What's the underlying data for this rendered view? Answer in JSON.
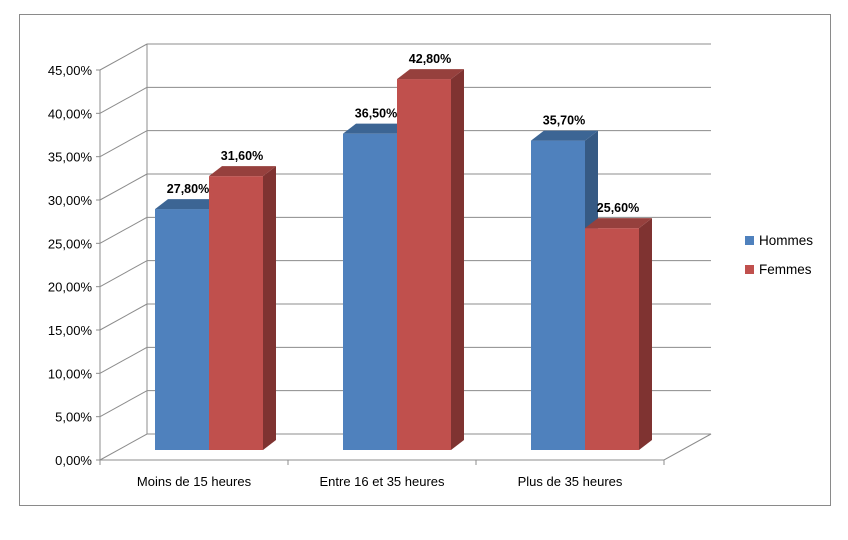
{
  "chart_data": {
    "type": "bar",
    "style": "3d-clustered-column",
    "categories": [
      "Moins de 15 heures",
      "Entre 16 et 35 heures",
      "Plus de 35 heures"
    ],
    "series": [
      {
        "name": "Hommes",
        "values": [
          27.8,
          36.5,
          35.7
        ],
        "labels": [
          "27,80%",
          "36,50%",
          "35,70%"
        ],
        "color": "#4F81BD",
        "top_color": "#3C6594",
        "side_color": "#365A84"
      },
      {
        "name": "Femmes",
        "values": [
          31.6,
          42.8,
          25.6
        ],
        "labels": [
          "31,60%",
          "42,80%",
          "25,60%"
        ],
        "color": "#C0504D",
        "top_color": "#96403D",
        "side_color": "#7F3331"
      }
    ],
    "y_ticks": [
      "0,00%",
      "5,00%",
      "10,00%",
      "15,00%",
      "20,00%",
      "25,00%",
      "30,00%",
      "35,00%",
      "40,00%",
      "45,00%"
    ],
    "ylim": [
      0,
      45
    ],
    "grid": true,
    "legend": "right",
    "colors": {
      "gridline": "#8c8c8c",
      "axis": "#8c8c8c"
    }
  }
}
